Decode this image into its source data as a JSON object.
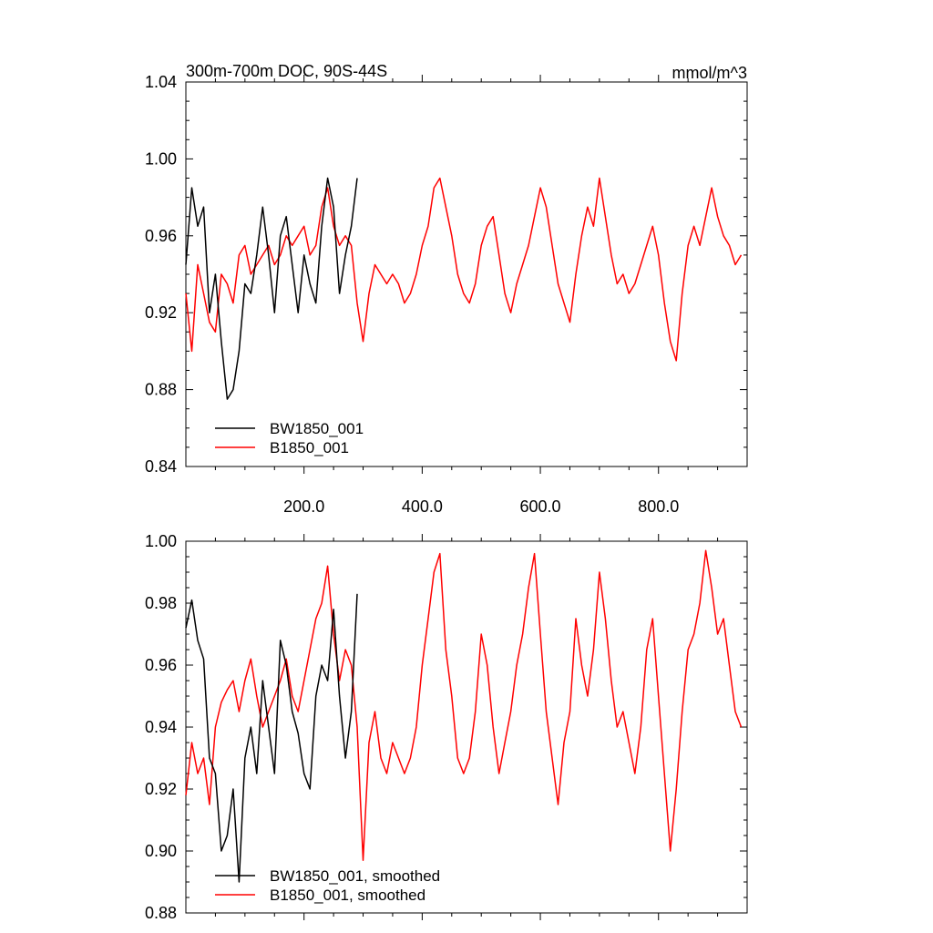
{
  "chart_data": [
    {
      "type": "line",
      "title_left": "300m-700m DOC, 90S-44S",
      "title_right": "mmol/m^3",
      "xlim": [
        0,
        950
      ],
      "ylim": [
        0.84,
        1.04
      ],
      "yticks": [
        0.84,
        0.88,
        0.92,
        0.96,
        1.0,
        1.04
      ],
      "ytick_labels": [
        "0.84",
        "0.88",
        "0.92",
        "0.96",
        "1.00",
        "1.04"
      ],
      "xticks": [
        200,
        400,
        600,
        800
      ],
      "xtick_labels": [
        "200.0",
        "400.0",
        "600.0",
        "800.0"
      ],
      "legend": "lower-left",
      "series": [
        {
          "name": "BW1850_001",
          "color": "#000000",
          "x": [
            0,
            10,
            20,
            30,
            40,
            50,
            60,
            70,
            80,
            90,
            100,
            110,
            120,
            130,
            140,
            150,
            160,
            170,
            180,
            190,
            200,
            210,
            220,
            230,
            240,
            250,
            260,
            270,
            280,
            290
          ],
          "y": [
            0.945,
            0.985,
            0.965,
            0.975,
            0.92,
            0.94,
            0.905,
            0.875,
            0.88,
            0.9,
            0.935,
            0.93,
            0.95,
            0.975,
            0.95,
            0.92,
            0.96,
            0.97,
            0.945,
            0.92,
            0.95,
            0.935,
            0.925,
            0.965,
            0.99,
            0.975,
            0.93,
            0.95,
            0.965,
            0.99
          ]
        },
        {
          "name": "B1850_001",
          "color": "#ff0000",
          "x": [
            0,
            10,
            20,
            30,
            40,
            50,
            60,
            70,
            80,
            90,
            100,
            110,
            120,
            130,
            140,
            150,
            160,
            170,
            180,
            190,
            200,
            210,
            220,
            230,
            240,
            250,
            260,
            270,
            280,
            290,
            300,
            310,
            320,
            330,
            340,
            350,
            360,
            370,
            380,
            390,
            400,
            410,
            420,
            430,
            440,
            450,
            460,
            470,
            480,
            490,
            500,
            510,
            520,
            530,
            540,
            550,
            560,
            570,
            580,
            590,
            600,
            610,
            620,
            630,
            640,
            650,
            660,
            670,
            680,
            690,
            700,
            710,
            720,
            730,
            740,
            750,
            760,
            770,
            780,
            790,
            800,
            810,
            820,
            830,
            840,
            850,
            860,
            870,
            880,
            890,
            900,
            910,
            920,
            930,
            940
          ],
          "y": [
            0.93,
            0.9,
            0.945,
            0.93,
            0.915,
            0.91,
            0.94,
            0.935,
            0.925,
            0.95,
            0.955,
            0.94,
            0.945,
            0.95,
            0.955,
            0.945,
            0.95,
            0.96,
            0.955,
            0.96,
            0.965,
            0.95,
            0.955,
            0.975,
            0.985,
            0.965,
            0.955,
            0.96,
            0.955,
            0.925,
            0.905,
            0.93,
            0.945,
            0.94,
            0.935,
            0.94,
            0.935,
            0.925,
            0.93,
            0.94,
            0.955,
            0.965,
            0.985,
            0.99,
            0.975,
            0.96,
            0.94,
            0.93,
            0.925,
            0.935,
            0.955,
            0.965,
            0.97,
            0.95,
            0.93,
            0.92,
            0.935,
            0.945,
            0.955,
            0.97,
            0.985,
            0.975,
            0.955,
            0.935,
            0.925,
            0.915,
            0.94,
            0.96,
            0.975,
            0.965,
            0.99,
            0.97,
            0.95,
            0.935,
            0.94,
            0.93,
            0.935,
            0.945,
            0.955,
            0.965,
            0.95,
            0.925,
            0.905,
            0.895,
            0.93,
            0.955,
            0.965,
            0.955,
            0.97,
            0.985,
            0.97,
            0.96,
            0.955,
            0.945,
            0.95
          ]
        }
      ]
    },
    {
      "type": "line",
      "xlim": [
        0,
        950
      ],
      "ylim": [
        0.88,
        1.0
      ],
      "yticks": [
        0.88,
        0.9,
        0.92,
        0.94,
        0.96,
        0.98,
        1.0
      ],
      "ytick_labels": [
        "0.88",
        "0.90",
        "0.92",
        "0.94",
        "0.96",
        "0.98",
        "1.00"
      ],
      "xticks": [
        200,
        400,
        600,
        800
      ],
      "legend": "lower-left",
      "series": [
        {
          "name": "BW1850_001, smoothed",
          "color": "#000000",
          "x": [
            0,
            10,
            20,
            30,
            40,
            50,
            60,
            70,
            80,
            90,
            100,
            110,
            120,
            130,
            140,
            150,
            160,
            170,
            180,
            190,
            200,
            210,
            220,
            230,
            240,
            250,
            260,
            270,
            280,
            290
          ],
          "y": [
            0.972,
            0.981,
            0.968,
            0.962,
            0.93,
            0.925,
            0.9,
            0.905,
            0.92,
            0.89,
            0.93,
            0.94,
            0.925,
            0.955,
            0.94,
            0.925,
            0.968,
            0.96,
            0.945,
            0.938,
            0.925,
            0.92,
            0.95,
            0.96,
            0.955,
            0.978,
            0.95,
            0.93,
            0.945,
            0.983
          ]
        },
        {
          "name": "B1850_001, smoothed",
          "color": "#ff0000",
          "x": [
            0,
            10,
            20,
            30,
            40,
            50,
            60,
            70,
            80,
            90,
            100,
            110,
            120,
            130,
            140,
            150,
            160,
            170,
            180,
            190,
            200,
            210,
            220,
            230,
            240,
            250,
            260,
            270,
            280,
            290,
            300,
            310,
            320,
            330,
            340,
            350,
            360,
            370,
            380,
            390,
            400,
            410,
            420,
            430,
            440,
            450,
            460,
            470,
            480,
            490,
            500,
            510,
            520,
            530,
            540,
            550,
            560,
            570,
            580,
            590,
            600,
            610,
            620,
            630,
            640,
            650,
            660,
            670,
            680,
            690,
            700,
            710,
            720,
            730,
            740,
            750,
            760,
            770,
            780,
            790,
            800,
            810,
            820,
            830,
            840,
            850,
            860,
            870,
            880,
            890,
            900,
            910,
            920,
            930,
            940
          ],
          "y": [
            0.918,
            0.935,
            0.925,
            0.93,
            0.915,
            0.94,
            0.948,
            0.952,
            0.955,
            0.945,
            0.955,
            0.962,
            0.95,
            0.94,
            0.945,
            0.95,
            0.955,
            0.962,
            0.95,
            0.945,
            0.955,
            0.965,
            0.975,
            0.98,
            0.992,
            0.97,
            0.955,
            0.965,
            0.96,
            0.94,
            0.897,
            0.935,
            0.945,
            0.93,
            0.925,
            0.935,
            0.93,
            0.925,
            0.93,
            0.94,
            0.96,
            0.975,
            0.99,
            0.996,
            0.965,
            0.95,
            0.93,
            0.925,
            0.93,
            0.945,
            0.97,
            0.96,
            0.94,
            0.925,
            0.935,
            0.945,
            0.96,
            0.97,
            0.985,
            0.996,
            0.97,
            0.945,
            0.93,
            0.915,
            0.935,
            0.945,
            0.975,
            0.96,
            0.95,
            0.965,
            0.99,
            0.975,
            0.955,
            0.94,
            0.945,
            0.935,
            0.925,
            0.94,
            0.965,
            0.975,
            0.95,
            0.925,
            0.9,
            0.92,
            0.945,
            0.965,
            0.97,
            0.98,
            0.997,
            0.985,
            0.97,
            0.975,
            0.96,
            0.945,
            0.94
          ]
        }
      ]
    }
  ]
}
